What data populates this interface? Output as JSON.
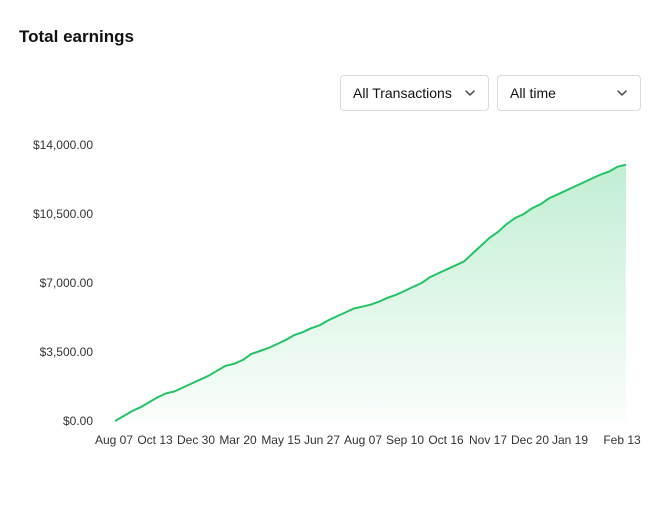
{
  "header": {
    "title": "Total earnings"
  },
  "filters": {
    "transactions": {
      "value": "All Transactions",
      "icon": "chevron-down-icon"
    },
    "period": {
      "value": "All time",
      "icon": "chevron-down-icon"
    }
  },
  "chart_data": {
    "type": "area",
    "line_color": "#22c463",
    "fill_color": "#22c463",
    "ylim": [
      0,
      14000
    ],
    "y_ticks": [
      "$14,000.00",
      "$10,500.00",
      "$7,000.00",
      "$3,500.00",
      "$0.00"
    ],
    "y_tick_values": [
      14000,
      10500,
      7000,
      3500,
      0
    ],
    "x_ticks": [
      "Aug 07",
      "Oct 13",
      "Dec 30",
      "Mar 20",
      "May 15",
      "Jun 27",
      "Aug 07",
      "Sep 10",
      "Oct 16",
      "Nov 17",
      "Dec 20",
      "Jan 19",
      "Feb 13"
    ],
    "grid": false,
    "legend": "none",
    "series": [
      {
        "values": [
          0,
          250,
          500,
          700,
          950,
          1200,
          1400,
          1500,
          1700,
          1900,
          2100,
          2300,
          2550,
          2800,
          2900,
          3100,
          3400,
          3550,
          3700,
          3900,
          4100,
          4350,
          4500,
          4700,
          4850,
          5100,
          5300,
          5500,
          5700,
          5800,
          5900,
          6050,
          6250,
          6400,
          6600,
          6800,
          7000,
          7300,
          7500,
          7700,
          7900,
          8100,
          8500,
          8900,
          9300,
          9600,
          10000,
          10300,
          10500,
          10800,
          11000,
          11300,
          11500,
          11700,
          11900,
          12100,
          12300,
          12500,
          12650,
          12900,
          13000
        ]
      }
    ]
  }
}
